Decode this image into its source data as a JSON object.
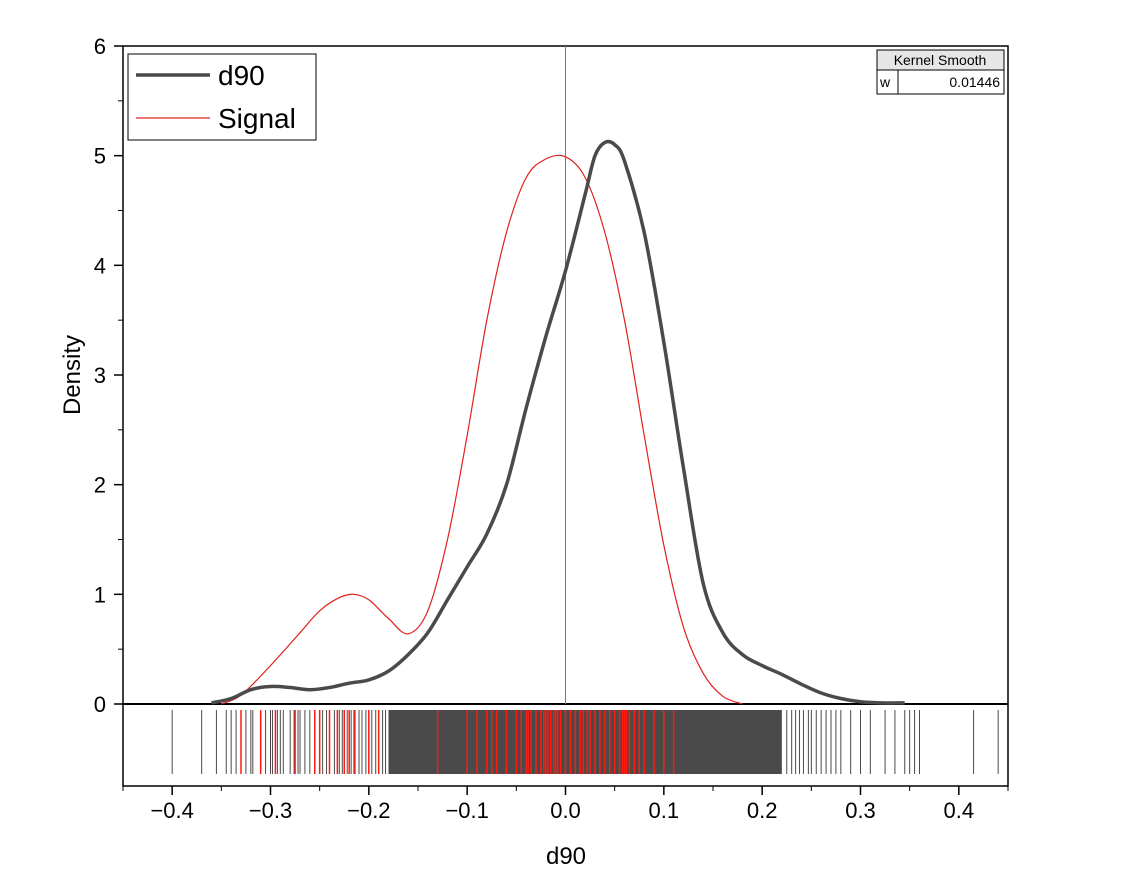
{
  "chart_data": {
    "type": "line",
    "title": "",
    "xlabel": "d90",
    "ylabel": "Density",
    "xlim": [
      -0.45,
      0.45
    ],
    "ylim": [
      -0.75,
      6
    ],
    "x_ticks": [
      -0.4,
      -0.3,
      -0.2,
      -0.1,
      0.0,
      0.1,
      0.2,
      0.3,
      0.4
    ],
    "x_tick_labels": [
      "−0.4",
      "−0.3",
      "−0.2",
      "−0.1",
      "0.0",
      "0.1",
      "0.2",
      "0.3",
      "0.4"
    ],
    "y_ticks": [
      0,
      1,
      2,
      3,
      4,
      5,
      6
    ],
    "y_tick_labels": [
      "0",
      "1",
      "2",
      "3",
      "4",
      "5",
      "6"
    ],
    "grid": false,
    "legend_placement": "top-left",
    "reference_line_x": 0.0,
    "series": [
      {
        "name": "d90",
        "color": "#4a4a4a",
        "x": [
          -0.36,
          -0.34,
          -0.32,
          -0.3,
          -0.28,
          -0.26,
          -0.24,
          -0.22,
          -0.2,
          -0.18,
          -0.16,
          -0.14,
          -0.12,
          -0.1,
          -0.08,
          -0.06,
          -0.04,
          -0.02,
          0.0,
          0.02,
          0.03,
          0.04,
          0.05,
          0.06,
          0.08,
          0.1,
          0.12,
          0.14,
          0.16,
          0.18,
          0.2,
          0.22,
          0.24,
          0.26,
          0.28,
          0.3,
          0.32,
          0.345
        ],
        "values": [
          0.01,
          0.05,
          0.13,
          0.16,
          0.15,
          0.13,
          0.15,
          0.19,
          0.22,
          0.3,
          0.45,
          0.65,
          0.95,
          1.25,
          1.55,
          2.0,
          2.7,
          3.35,
          3.95,
          4.65,
          5.0,
          5.12,
          5.1,
          4.95,
          4.3,
          3.3,
          2.15,
          1.1,
          0.65,
          0.45,
          0.35,
          0.27,
          0.18,
          0.1,
          0.05,
          0.02,
          0.01,
          0.01
        ]
      },
      {
        "name": "Signal",
        "color": "#e0201c",
        "x": [
          -0.35,
          -0.33,
          -0.3,
          -0.27,
          -0.25,
          -0.23,
          -0.215,
          -0.2,
          -0.18,
          -0.16,
          -0.14,
          -0.12,
          -0.1,
          -0.08,
          -0.06,
          -0.04,
          -0.02,
          0.0,
          0.02,
          0.04,
          0.06,
          0.08,
          0.1,
          0.12,
          0.14,
          0.16,
          0.18
        ],
        "values": [
          0.0,
          0.08,
          0.35,
          0.65,
          0.85,
          0.97,
          1.0,
          0.95,
          0.78,
          0.64,
          0.85,
          1.5,
          2.45,
          3.5,
          4.3,
          4.8,
          4.97,
          4.99,
          4.8,
          4.3,
          3.5,
          2.45,
          1.45,
          0.7,
          0.28,
          0.07,
          0.0
        ]
      }
    ],
    "rug": {
      "gray_color": "#4a4a4a",
      "red_color": "#ff1a10",
      "gray_dense_ranges": [
        [
          -0.18,
          0.11
        ],
        [
          0.11,
          0.22
        ]
      ],
      "gray_x": [
        -0.4,
        -0.37,
        -0.355,
        -0.345,
        -0.34,
        -0.335,
        -0.33,
        -0.325,
        -0.32,
        -0.318,
        -0.31,
        -0.305,
        -0.3,
        -0.298,
        -0.293,
        -0.29,
        -0.287,
        -0.28,
        -0.276,
        -0.272,
        -0.27,
        -0.265,
        -0.26,
        -0.255,
        -0.25,
        -0.247,
        -0.243,
        -0.24,
        -0.235,
        -0.23,
        -0.227,
        -0.222,
        -0.218,
        -0.214,
        -0.21,
        -0.207,
        -0.203,
        -0.2,
        -0.197,
        -0.193,
        -0.19,
        -0.186,
        -0.183,
        0.225,
        0.23,
        0.234,
        0.238,
        0.242,
        0.247,
        0.25,
        0.255,
        0.26,
        0.265,
        0.27,
        0.275,
        0.28,
        0.29,
        0.3,
        0.31,
        0.325,
        0.335,
        0.345,
        0.35,
        0.355,
        0.36,
        0.415,
        0.44
      ],
      "red_x": [
        -0.33,
        -0.31,
        -0.295,
        -0.275,
        -0.255,
        -0.25,
        -0.24,
        -0.232,
        -0.225,
        -0.22,
        -0.215,
        -0.2,
        -0.19,
        -0.13,
        -0.1,
        -0.09,
        -0.08,
        -0.075,
        -0.07,
        -0.06,
        -0.05,
        -0.045,
        -0.04,
        -0.038,
        -0.035,
        -0.03,
        -0.025,
        -0.022,
        -0.02,
        -0.018,
        -0.015,
        -0.012,
        -0.01,
        -0.008,
        -0.005,
        0.0,
        0.005,
        0.01,
        0.015,
        0.018,
        0.022,
        0.025,
        0.03,
        0.035,
        0.04,
        0.045,
        0.05,
        0.055,
        0.058,
        0.06,
        0.062,
        0.065,
        0.07,
        0.075,
        0.08,
        0.09,
        0.1,
        0.11
      ]
    },
    "kernel_smooth_table": {
      "header": "Kernel Smooth",
      "row_label": "w",
      "row_value": "0.01446"
    }
  }
}
